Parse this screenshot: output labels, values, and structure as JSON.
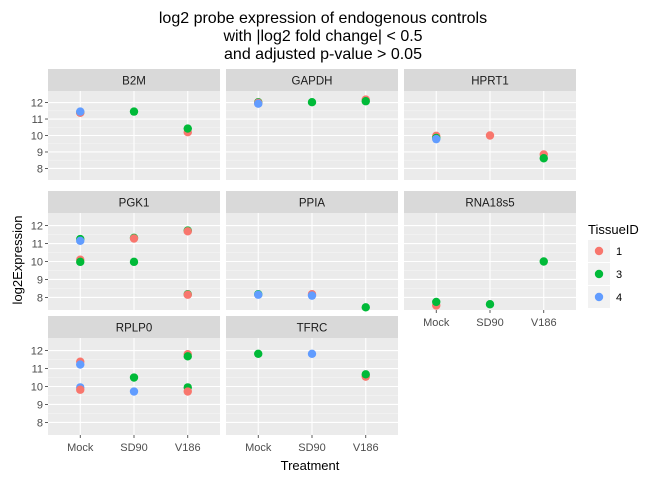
{
  "chart_data": {
    "type": "scatter",
    "title_lines": [
      "log2 probe expression of endogenous controls",
      "with |log2 fold change| < 0.5",
      "and adjusted p-value > 0.05"
    ],
    "xlabel": "Treatment",
    "ylabel": "log2Expression",
    "x_categories": [
      "Mock",
      "SD90",
      "V186"
    ],
    "y_ticks": [
      8,
      9,
      10,
      11,
      12
    ],
    "ylim": [
      7.3,
      12.7
    ],
    "grid": true,
    "legend": {
      "title": "TissueID",
      "position": "right",
      "entries": [
        {
          "label": "1",
          "color": "#F8766D"
        },
        {
          "label": "3",
          "color": "#00BA38"
        },
        {
          "label": "4",
          "color": "#619CFF"
        }
      ]
    },
    "series_colors": {
      "1": "#F8766D",
      "3": "#00BA38",
      "4": "#619CFF"
    },
    "facets": [
      {
        "name": "B2M",
        "points": [
          {
            "x": "Mock",
            "y": 11.4,
            "tissue": "3"
          },
          {
            "x": "Mock",
            "y": 11.38,
            "tissue": "1"
          },
          {
            "x": "Mock",
            "y": 11.45,
            "tissue": "4"
          },
          {
            "x": "SD90",
            "y": 11.45,
            "tissue": "3"
          },
          {
            "x": "V186",
            "y": 10.2,
            "tissue": "1"
          },
          {
            "x": "V186",
            "y": 10.42,
            "tissue": "3"
          }
        ]
      },
      {
        "name": "GAPDH",
        "points": [
          {
            "x": "Mock",
            "y": 12.02,
            "tissue": "3"
          },
          {
            "x": "Mock",
            "y": 11.98,
            "tissue": "1"
          },
          {
            "x": "Mock",
            "y": 11.93,
            "tissue": "4"
          },
          {
            "x": "SD90",
            "y": 12.02,
            "tissue": "3"
          },
          {
            "x": "V186",
            "y": 12.18,
            "tissue": "1"
          },
          {
            "x": "V186",
            "y": 12.08,
            "tissue": "3"
          }
        ]
      },
      {
        "name": "HPRT1",
        "points": [
          {
            "x": "Mock",
            "y": 9.98,
            "tissue": "1"
          },
          {
            "x": "Mock",
            "y": 9.85,
            "tissue": "3"
          },
          {
            "x": "Mock",
            "y": 9.78,
            "tissue": "4"
          },
          {
            "x": "SD90",
            "y": 10.0,
            "tissue": "1"
          },
          {
            "x": "V186",
            "y": 8.85,
            "tissue": "1"
          },
          {
            "x": "V186",
            "y": 8.62,
            "tissue": "3"
          }
        ]
      },
      {
        "name": "PGK1",
        "points": [
          {
            "x": "Mock",
            "y": 11.25,
            "tissue": "3"
          },
          {
            "x": "Mock",
            "y": 11.15,
            "tissue": "4"
          },
          {
            "x": "Mock",
            "y": 10.1,
            "tissue": "1"
          },
          {
            "x": "Mock",
            "y": 9.98,
            "tissue": "3"
          },
          {
            "x": "SD90",
            "y": 11.32,
            "tissue": "3"
          },
          {
            "x": "SD90",
            "y": 11.28,
            "tissue": "1"
          },
          {
            "x": "SD90",
            "y": 9.98,
            "tissue": "3"
          },
          {
            "x": "V186",
            "y": 11.72,
            "tissue": "3"
          },
          {
            "x": "V186",
            "y": 11.68,
            "tissue": "1"
          },
          {
            "x": "V186",
            "y": 8.18,
            "tissue": "3"
          },
          {
            "x": "V186",
            "y": 8.15,
            "tissue": "1"
          }
        ]
      },
      {
        "name": "PPIA",
        "points": [
          {
            "x": "Mock",
            "y": 8.18,
            "tissue": "3"
          },
          {
            "x": "Mock",
            "y": 8.15,
            "tissue": "4"
          },
          {
            "x": "SD90",
            "y": 8.18,
            "tissue": "1"
          },
          {
            "x": "SD90",
            "y": 8.1,
            "tissue": "4"
          },
          {
            "x": "V186",
            "y": 7.45,
            "tissue": "3"
          }
        ]
      },
      {
        "name": "RNA18s5",
        "points": [
          {
            "x": "Mock",
            "y": 7.55,
            "tissue": "1"
          },
          {
            "x": "Mock",
            "y": 7.75,
            "tissue": "3"
          },
          {
            "x": "SD90",
            "y": 7.62,
            "tissue": "3"
          },
          {
            "x": "V186",
            "y": 10.0,
            "tissue": "3"
          }
        ]
      },
      {
        "name": "RPLP0",
        "points": [
          {
            "x": "Mock",
            "y": 11.38,
            "tissue": "1"
          },
          {
            "x": "Mock",
            "y": 11.22,
            "tissue": "4"
          },
          {
            "x": "Mock",
            "y": 9.95,
            "tissue": "4"
          },
          {
            "x": "Mock",
            "y": 9.82,
            "tissue": "1"
          },
          {
            "x": "SD90",
            "y": 10.5,
            "tissue": "3"
          },
          {
            "x": "SD90",
            "y": 9.72,
            "tissue": "4"
          },
          {
            "x": "V186",
            "y": 11.8,
            "tissue": "1"
          },
          {
            "x": "V186",
            "y": 11.68,
            "tissue": "3"
          },
          {
            "x": "V186",
            "y": 9.95,
            "tissue": "3"
          },
          {
            "x": "V186",
            "y": 9.72,
            "tissue": "1"
          }
        ]
      },
      {
        "name": "TFRC",
        "points": [
          {
            "x": "Mock",
            "y": 11.82,
            "tissue": "3"
          },
          {
            "x": "SD90",
            "y": 11.82,
            "tissue": "4"
          },
          {
            "x": "V186",
            "y": 10.55,
            "tissue": "1"
          },
          {
            "x": "V186",
            "y": 10.68,
            "tissue": "3"
          }
        ]
      }
    ]
  }
}
